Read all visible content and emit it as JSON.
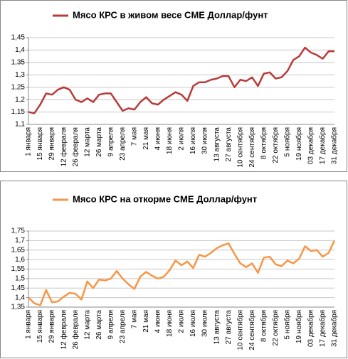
{
  "chart_data": [
    {
      "type": "line",
      "categories": [
        "1 января",
        null,
        "15 января",
        null,
        "29 января",
        null,
        "12 февраля",
        null,
        "26 февраля",
        null,
        "12 марта",
        null,
        "26 марта",
        null,
        "9 апреля",
        null,
        "23 апреля",
        null,
        "7 мая",
        null,
        "21 мая",
        null,
        "4 июня",
        null,
        "18 июня",
        null,
        "2 июля",
        null,
        "16 июля",
        null,
        "30 июля",
        null,
        "13 августа",
        null,
        "27 августа",
        null,
        "10 сентября",
        null,
        "24 сентября",
        null,
        "8 октября",
        null,
        "22 октября",
        null,
        "5 ноября",
        null,
        "19 ноября",
        null,
        "03 декабря",
        null,
        "17 декабря",
        null,
        "31 декабря"
      ],
      "series": [
        {
          "name": "Мясо КРС в живом весе CME Доллар/фунт",
          "color": "#b83b3b",
          "values": [
            1.15,
            1.145,
            1.18,
            1.225,
            1.22,
            1.24,
            1.25,
            1.24,
            1.2,
            1.19,
            1.205,
            1.19,
            1.22,
            1.225,
            1.225,
            1.19,
            1.155,
            1.165,
            1.16,
            1.19,
            1.21,
            1.185,
            1.18,
            1.2,
            1.215,
            1.23,
            1.22,
            1.195,
            1.255,
            1.27,
            1.27,
            1.28,
            1.285,
            1.295,
            1.295,
            1.25,
            1.28,
            1.275,
            1.29,
            1.255,
            1.305,
            1.31,
            1.285,
            1.29,
            1.315,
            1.36,
            1.375,
            1.41,
            1.39,
            1.38,
            1.365,
            1.395,
            1.395
          ]
        }
      ],
      "ylim": [
        1.1,
        1.45
      ],
      "yticks": [
        {
          "value": 1.1,
          "label": "1,1"
        },
        {
          "value": 1.15,
          "label": "1,15"
        },
        {
          "value": 1.2,
          "label": "1,2"
        },
        {
          "value": 1.25,
          "label": "1,25"
        },
        {
          "value": 1.3,
          "label": "1,3"
        },
        {
          "value": 1.35,
          "label": "1,35"
        },
        {
          "value": 1.4,
          "label": "1,4"
        },
        {
          "value": 1.45,
          "label": "1,45"
        }
      ],
      "grid": true,
      "legend": "top"
    },
    {
      "type": "line",
      "categories": [
        "1 января",
        null,
        "15 января",
        null,
        "29 января",
        null,
        "12 февраля",
        null,
        "26 февраля",
        null,
        "12 марта",
        null,
        "26 марта",
        null,
        "9 апреля",
        null,
        "23 апреля",
        null,
        "7 мая",
        null,
        "21 мая",
        null,
        "4 июня",
        null,
        "18 июня",
        null,
        "2 июля",
        null,
        "16 июля",
        null,
        "30 июля",
        null,
        "13 августа",
        null,
        "27 августа",
        null,
        "10 сентября",
        null,
        "24 сентября",
        null,
        "8 октября",
        null,
        "22 октября",
        null,
        "5 ноября",
        null,
        "19 ноября",
        null,
        "03 декабря",
        null,
        "17 декабря",
        null,
        "31 декабря"
      ],
      "series": [
        {
          "name": "Мясо КРС на откорме CME Доллар/фунт",
          "color": "#f79646",
          "values": [
            1.4,
            1.37,
            1.36,
            1.44,
            1.375,
            1.38,
            1.405,
            1.425,
            1.42,
            1.39,
            1.485,
            1.45,
            1.495,
            1.49,
            1.5,
            1.54,
            1.5,
            1.47,
            1.445,
            1.51,
            1.535,
            1.515,
            1.5,
            1.51,
            1.545,
            1.595,
            1.57,
            1.59,
            1.555,
            1.625,
            1.615,
            1.635,
            1.66,
            1.675,
            1.685,
            1.63,
            1.58,
            1.56,
            1.58,
            1.53,
            1.61,
            1.615,
            1.575,
            1.565,
            1.595,
            1.58,
            1.605,
            1.67,
            1.645,
            1.65,
            1.615,
            1.635,
            1.7
          ]
        }
      ],
      "ylim": [
        1.35,
        1.75
      ],
      "yticks": [
        {
          "value": 1.35,
          "label": "1,35"
        },
        {
          "value": 1.4,
          "label": "1,4"
        },
        {
          "value": 1.45,
          "label": "1,45"
        },
        {
          "value": 1.5,
          "label": "1,5"
        },
        {
          "value": 1.55,
          "label": "1,55"
        },
        {
          "value": 1.6,
          "label": "1,6"
        },
        {
          "value": 1.65,
          "label": "1,65"
        },
        {
          "value": 1.7,
          "label": "1,7"
        },
        {
          "value": 1.75,
          "label": "1,75"
        }
      ],
      "grid": true,
      "legend": "top"
    }
  ]
}
